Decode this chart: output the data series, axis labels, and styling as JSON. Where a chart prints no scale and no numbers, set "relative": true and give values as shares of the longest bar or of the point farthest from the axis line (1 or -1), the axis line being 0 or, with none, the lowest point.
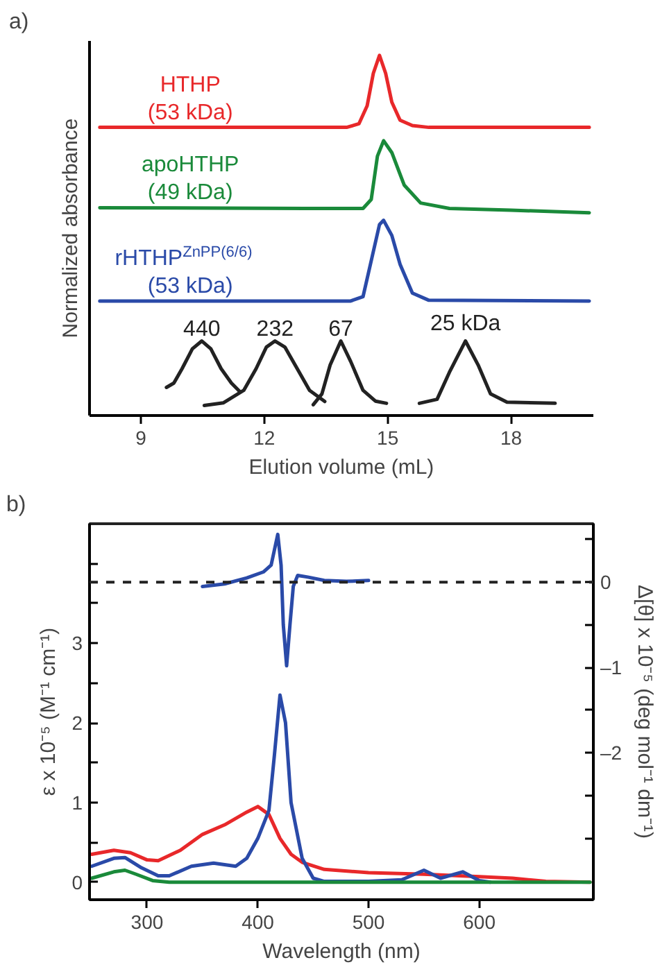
{
  "chart_data": [
    {
      "type": "line",
      "title": "a)",
      "relative": true,
      "tick_labels": "x",
      "xlabel": "Elution volume (mL)",
      "ylabel": "Normalized absorbance",
      "xlim": [
        7.75,
        20
      ],
      "xticks": [
        9,
        12,
        15,
        18
      ],
      "grid": false,
      "legend": false,
      "series": [
        {
          "name": "HTHP\n(53 kDa)",
          "color": "#e8282a",
          "x": [
            8,
            14.0,
            14.3,
            14.5,
            14.65,
            14.8,
            14.95,
            15.1,
            15.3,
            15.6,
            16,
            19.9
          ],
          "values": [
            0.8,
            0.8,
            0.81,
            0.86,
            0.95,
            1.0,
            0.95,
            0.87,
            0.82,
            0.805,
            0.8,
            0.8
          ]
        },
        {
          "name": "apoHTHP\n(49 kDa)",
          "color": "#1a8a3a",
          "x": [
            8,
            13,
            14.4,
            14.6,
            14.75,
            14.9,
            15.1,
            15.4,
            15.8,
            16.5,
            18,
            19.9
          ],
          "values": [
            0.577,
            0.575,
            0.575,
            0.6,
            0.72,
            0.763,
            0.73,
            0.64,
            0.59,
            0.575,
            0.57,
            0.563
          ]
        },
        {
          "name": "rHTHP$^{ZnPP(6/6)}$\n(53 kDa)",
          "color": "#2a4aa8",
          "x": [
            8,
            14.1,
            14.4,
            14.6,
            14.8,
            14.9,
            15.1,
            15.3,
            15.6,
            16,
            19.9
          ],
          "values": [
            0.318,
            0.318,
            0.33,
            0.43,
            0.53,
            0.542,
            0.5,
            0.42,
            0.34,
            0.32,
            0.318
          ]
        },
        {
          "name": "440",
          "color": "#222222",
          "x": [
            9.62,
            9.8,
            10.0,
            10.25,
            10.48,
            10.7,
            10.95,
            11.2,
            11.4
          ],
          "values": [
            0.078,
            0.09,
            0.13,
            0.185,
            0.207,
            0.185,
            0.13,
            0.09,
            0.067
          ]
        },
        {
          "name": "232",
          "color": "#222222",
          "x": [
            10.54,
            11.0,
            11.5,
            11.8,
            12.05,
            12.26,
            12.5,
            12.8,
            13.1,
            13.47
          ],
          "values": [
            0.028,
            0.035,
            0.07,
            0.13,
            0.19,
            0.207,
            0.19,
            0.13,
            0.07,
            0.039
          ]
        },
        {
          "name": "67",
          "color": "#222222",
          "x": [
            13.19,
            13.4,
            13.6,
            13.86,
            14.1,
            14.4,
            14.7,
            14.97
          ],
          "values": [
            0.03,
            0.06,
            0.14,
            0.207,
            0.15,
            0.07,
            0.04,
            0.034
          ]
        },
        {
          "name": "25 kDa",
          "color": "#222222",
          "x": [
            15.77,
            16.2,
            16.5,
            16.89,
            17.2,
            17.5,
            17.9,
            19.07
          ],
          "values": [
            0.034,
            0.045,
            0.12,
            0.207,
            0.14,
            0.06,
            0.037,
            0.034
          ]
        }
      ]
    },
    {
      "type": "line",
      "title": "b)",
      "xlabel": "Wavelength (nm)",
      "ylabel": "ε x 10⁻⁵ (M⁻¹ cm⁻¹)",
      "y2label": "Δ[θ] x 10⁻⁵ (deg mol⁻¹ dm⁻¹)",
      "xlim": [
        248,
        703
      ],
      "xticks": [
        300,
        400,
        500,
        600
      ],
      "ylim": [
        -0.22,
        4.5
      ],
      "yticks": [
        0,
        {
          "value": 0.5,
          "label": null
        },
        1,
        {
          "value": 1.5,
          "label": null
        },
        2,
        {
          "value": 2.5,
          "label": null
        },
        3,
        {
          "value": 3.5,
          "label": null
        },
        {
          "value": 4,
          "label": null
        }
      ],
      "y2lim": [
        -3.72,
        0.685
      ],
      "y2ticks": [
        {
          "value": 0.5,
          "label": null
        },
        0,
        {
          "value": -0.5,
          "label": null
        },
        {
          "value": -1,
          "label": "–1"
        },
        {
          "value": -1.5,
          "label": null
        },
        {
          "value": -2,
          "label": "–2"
        },
        {
          "value": -2.5,
          "label": null
        },
        {
          "value": -3,
          "label": null
        }
      ],
      "grid": false,
      "legend": false,
      "ref_lines": [
        {
          "axis": "y2",
          "value": 0,
          "color": "#222222",
          "line_style": "dashed"
        }
      ],
      "series": [
        {
          "color": "#e8282a",
          "x": [
            250,
            270,
            285,
            300,
            310,
            330,
            350,
            370,
            390,
            400,
            410,
            420,
            430,
            440,
            460,
            500,
            550,
            600,
            630,
            660,
            700
          ],
          "values": [
            0.35,
            0.4,
            0.37,
            0.28,
            0.27,
            0.4,
            0.6,
            0.72,
            0.88,
            0.95,
            0.85,
            0.55,
            0.35,
            0.25,
            0.16,
            0.12,
            0.1,
            0.07,
            0.05,
            0.01,
            0
          ]
        },
        {
          "color": "#2a4aa8",
          "x": [
            250,
            270,
            280,
            295,
            310,
            320,
            340,
            360,
            380,
            390,
            400,
            410,
            415,
            420,
            425,
            430,
            440,
            450,
            460,
            500,
            530,
            550,
            565,
            585,
            600,
            610
          ],
          "values": [
            0.2,
            0.3,
            0.31,
            0.18,
            0.08,
            0.08,
            0.2,
            0.24,
            0.2,
            0.3,
            0.55,
            0.9,
            1.6,
            2.35,
            2.0,
            1.0,
            0.3,
            0.05,
            0.01,
            0.01,
            0.03,
            0.15,
            0.05,
            0.13,
            0.02,
            0
          ]
        },
        {
          "color": "#1a8a3a",
          "x": [
            250,
            270,
            280,
            290,
            305,
            320,
            700
          ],
          "values": [
            0.05,
            0.13,
            0.15,
            0.1,
            0.02,
            0,
            0
          ]
        },
        {
          "color": "#2a4aa8",
          "axis": "y2",
          "x": [
            350,
            370,
            390,
            405,
            412,
            418,
            421,
            423,
            426,
            429,
            432,
            436,
            445,
            460,
            480,
            500
          ],
          "values": [
            -0.05,
            -0.02,
            0.05,
            0.12,
            0.2,
            0.56,
            0.2,
            -0.5,
            -0.98,
            -0.5,
            -0.05,
            0.08,
            0.06,
            0.02,
            0.01,
            0.02
          ]
        }
      ]
    }
  ]
}
